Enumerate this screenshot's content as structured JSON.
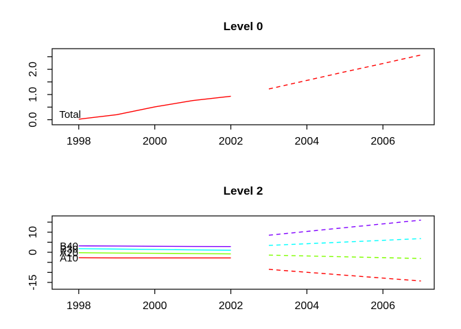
{
  "figure": {
    "background": "#ffffff",
    "frame_color": "#000000"
  },
  "chart_data": [
    {
      "type": "line",
      "title": "Level 0",
      "xlabel": "",
      "ylabel": "",
      "grid": false,
      "legend_position": "none",
      "xlim": [
        1997.3,
        2007.35
      ],
      "ylim": [
        -0.2,
        2.82
      ],
      "x_ticks": [
        1998,
        2000,
        2002,
        2004,
        2006
      ],
      "x_tick_labels": [
        "1998",
        "2000",
        "2002",
        "2004",
        "2006"
      ],
      "y_ticks": [
        0,
        0.5,
        1,
        1.5,
        2,
        2.5
      ],
      "y_tick_labels": [
        "0.0",
        "",
        "1.0",
        "",
        "2.0",
        ""
      ],
      "series": [
        {
          "name": "Total",
          "label": "Total",
          "color": "#FF0000",
          "history_x": [
            1998,
            1999,
            2000,
            2001,
            2002
          ],
          "history_y": [
            0.02,
            0.2,
            0.51,
            0.76,
            0.93
          ],
          "forecast_x": [
            2003,
            2004,
            2005,
            2006,
            2007
          ],
          "forecast_y": [
            1.22,
            1.56,
            1.9,
            2.23,
            2.57
          ]
        }
      ]
    },
    {
      "type": "line",
      "title": "Level 2",
      "xlabel": "",
      "ylabel": "",
      "grid": false,
      "legend_position": "labels-at-line-start",
      "xlim": [
        1997.3,
        2007.35
      ],
      "ylim": [
        -18.4,
        18.1
      ],
      "x_ticks": [
        1998,
        2000,
        2002,
        2004,
        2006
      ],
      "x_tick_labels": [
        "1998",
        "2000",
        "2002",
        "2004",
        "2006"
      ],
      "y_ticks": [
        -15,
        -10,
        -5,
        0,
        5,
        10,
        15
      ],
      "y_tick_labels": [
        "-15",
        "",
        "",
        "0",
        "",
        "10",
        ""
      ],
      "series": [
        {
          "name": "B40",
          "label": "B40",
          "color": "#8000FF",
          "history_x": [
            1998,
            1999,
            2000,
            2001,
            2002
          ],
          "history_y": [
            3.2,
            3.1,
            3.0,
            2.9,
            2.85
          ],
          "forecast_x": [
            2003,
            2007
          ],
          "forecast_y": [
            8.5,
            16.0
          ]
        },
        {
          "name": "B30",
          "label": "B30",
          "color": "#00FFFF",
          "history_x": [
            1998,
            1999,
            2000,
            2001,
            2002
          ],
          "history_y": [
            1.8,
            1.6,
            1.4,
            1.2,
            1.0
          ],
          "forecast_x": [
            2003,
            2007
          ],
          "forecast_y": [
            3.4,
            6.8
          ]
        },
        {
          "name": "A20",
          "label": "A20",
          "color": "#80FF00",
          "history_x": [
            1998,
            1999,
            2000,
            2001,
            2002
          ],
          "history_y": [
            -0.2,
            -0.4,
            -0.5,
            -0.65,
            -0.8
          ],
          "forecast_x": [
            2003,
            2007
          ],
          "forecast_y": [
            -1.4,
            -3.1
          ]
        },
        {
          "name": "A10",
          "label": "A10",
          "color": "#FF0000",
          "history_x": [
            1998,
            1999,
            2000,
            2001,
            2002
          ],
          "history_y": [
            -2.7,
            -2.8,
            -2.8,
            -2.8,
            -2.8
          ],
          "forecast_x": [
            2003,
            2007
          ],
          "forecast_y": [
            -8.5,
            -14.3
          ]
        }
      ]
    }
  ]
}
